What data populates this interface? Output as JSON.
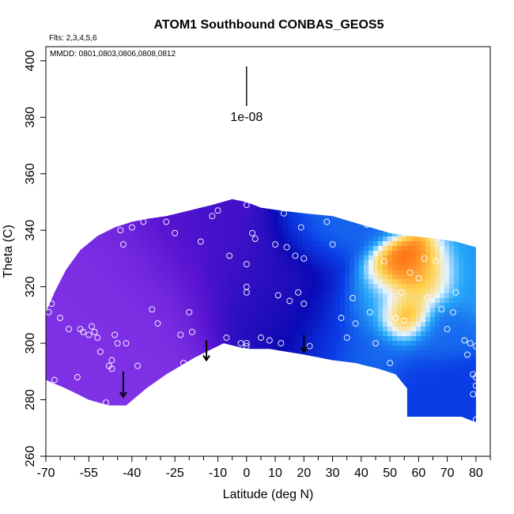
{
  "chart_data": {
    "type": "heatmap",
    "title": "ATOM1 Southbound CONBAS_GEOS5",
    "subtitle_left": "Flts: 2,3,4,5,6",
    "annotation_mmdd": "MMDD: 0801,0803,0806,0808,0812",
    "xlabel": "Latitude (deg N)",
    "ylabel": "Theta (C)",
    "xlim": [
      -70,
      85
    ],
    "ylim": [
      260,
      405
    ],
    "x_tick_labels": [
      "-70",
      "-55",
      "-40",
      "-25",
      "-10",
      "0",
      "10",
      "20",
      "30",
      "40",
      "50",
      "60",
      "70",
      "80"
    ],
    "x_tick_values": [
      -70,
      -55,
      -40,
      -25,
      -10,
      0,
      10,
      20,
      30,
      40,
      50,
      60,
      70,
      80
    ],
    "x_minor_ticks": [
      -65,
      -60,
      -50,
      -45,
      -35,
      -30,
      -20,
      -15,
      -5,
      5,
      15,
      25,
      35,
      45,
      55,
      65,
      75,
      85
    ],
    "y_tick_labels": [
      "260",
      "280",
      "300",
      "320",
      "340",
      "360",
      "380",
      "400"
    ],
    "y_tick_values": [
      260,
      280,
      300,
      320,
      340,
      360,
      380,
      400
    ],
    "scale_bar": {
      "label": "1e-08",
      "x": 0,
      "y_top": 398,
      "y_bottom": 384
    },
    "outline_upper": [
      [
        -70,
        311
      ],
      [
        -67,
        318
      ],
      [
        -63,
        326
      ],
      [
        -58,
        333
      ],
      [
        -52,
        338
      ],
      [
        -46,
        341
      ],
      [
        -40,
        343
      ],
      [
        -35,
        344
      ],
      [
        -28,
        345
      ],
      [
        -20,
        347
      ],
      [
        -12,
        349
      ],
      [
        -5,
        351
      ],
      [
        0,
        350
      ],
      [
        5,
        348
      ],
      [
        12,
        347
      ],
      [
        20,
        346
      ],
      [
        30,
        345
      ],
      [
        40,
        342
      ],
      [
        50,
        339
      ],
      [
        58,
        338
      ],
      [
        66,
        337
      ],
      [
        73,
        336
      ],
      [
        80,
        334
      ],
      [
        80,
        272
      ]
    ],
    "outline_lower": [
      [
        -70,
        287
      ],
      [
        -63,
        284
      ],
      [
        -55,
        280
      ],
      [
        -48,
        278
      ],
      [
        -42,
        278
      ],
      [
        -35,
        284
      ],
      [
        -28,
        289
      ],
      [
        -18,
        295
      ],
      [
        -8,
        300
      ],
      [
        0,
        298
      ],
      [
        8,
        298
      ],
      [
        20,
        296
      ],
      [
        30,
        294
      ],
      [
        38,
        293
      ],
      [
        46,
        291
      ],
      [
        52,
        289
      ],
      [
        56,
        284
      ],
      [
        56,
        274
      ],
      [
        66,
        274
      ],
      [
        75,
        274
      ],
      [
        80,
        272
      ]
    ],
    "field_blobs": [
      {
        "x": -55,
        "y": 305,
        "value": 0.05,
        "spread": 18
      },
      {
        "x": -40,
        "y": 320,
        "value": 0.08,
        "spread": 16
      },
      {
        "x": -15,
        "y": 335,
        "value": 0.25,
        "spread": 14
      },
      {
        "x": 5,
        "y": 320,
        "value": 0.3,
        "spread": 14
      },
      {
        "x": 15,
        "y": 310,
        "value": 0.35,
        "spread": 12
      },
      {
        "x": 28,
        "y": 340,
        "value": 0.55,
        "spread": 10
      },
      {
        "x": 35,
        "y": 305,
        "value": 0.55,
        "spread": 12
      },
      {
        "x": 46,
        "y": 315,
        "value": 0.65,
        "spread": 8
      },
      {
        "x": 53,
        "y": 325,
        "value": 0.95,
        "spread": 6
      },
      {
        "x": 55,
        "y": 310,
        "value": 1.0,
        "spread": 5
      },
      {
        "x": 62,
        "y": 322,
        "value": 0.85,
        "spread": 6
      },
      {
        "x": 68,
        "y": 305,
        "value": 0.55,
        "spread": 7
      },
      {
        "x": 70,
        "y": 280,
        "value": 0.5,
        "spread": 10
      },
      {
        "x": 78,
        "y": 320,
        "value": 0.6,
        "spread": 8
      }
    ],
    "arrows": [
      {
        "x": -43,
        "y_top": 290,
        "y_bottom": 281
      },
      {
        "x": -14,
        "y_top": 301,
        "y_bottom": 294
      },
      {
        "x": 20,
        "y_top": 303,
        "y_bottom": 297
      }
    ],
    "sample_points": [
      [
        -69,
        311
      ],
      [
        -68,
        314
      ],
      [
        -67,
        287
      ],
      [
        -65,
        309
      ],
      [
        -62,
        305
      ],
      [
        -59,
        288
      ],
      [
        -58,
        305
      ],
      [
        -57,
        304
      ],
      [
        -55,
        303
      ],
      [
        -54,
        306
      ],
      [
        -53,
        304
      ],
      [
        -52,
        302
      ],
      [
        -51,
        297
      ],
      [
        -49,
        279
      ],
      [
        -48,
        292
      ],
      [
        -47,
        294
      ],
      [
        -47,
        291
      ],
      [
        -46,
        303
      ],
      [
        -45,
        300
      ],
      [
        -44,
        340
      ],
      [
        -43,
        335
      ],
      [
        -42,
        300
      ],
      [
        -41,
        345
      ],
      [
        -40,
        341
      ],
      [
        -38,
        292
      ],
      [
        -36,
        343
      ],
      [
        -35,
        347
      ],
      [
        -33,
        312
      ],
      [
        -31,
        307
      ],
      [
        -28,
        343
      ],
      [
        -25,
        339
      ],
      [
        -23,
        303
      ],
      [
        -22,
        293
      ],
      [
        -20,
        311
      ],
      [
        -19,
        304
      ],
      [
        -16,
        336
      ],
      [
        -12,
        345
      ],
      [
        -10,
        347
      ],
      [
        -7,
        302
      ],
      [
        -6,
        331
      ],
      [
        -2,
        300
      ],
      [
        0,
        328
      ],
      [
        0,
        320
      ],
      [
        0,
        318
      ],
      [
        0,
        300
      ],
      [
        0,
        299
      ],
      [
        0,
        349
      ],
      [
        2,
        339
      ],
      [
        3,
        337
      ],
      [
        5,
        302
      ],
      [
        8,
        301
      ],
      [
        10,
        335
      ],
      [
        11,
        317
      ],
      [
        12,
        300
      ],
      [
        13,
        346
      ],
      [
        14,
        334
      ],
      [
        15,
        315
      ],
      [
        17,
        331
      ],
      [
        18,
        318
      ],
      [
        19,
        341
      ],
      [
        20,
        330
      ],
      [
        20,
        314
      ],
      [
        22,
        299
      ],
      [
        25,
        291
      ],
      [
        28,
        343
      ],
      [
        30,
        335
      ],
      [
        33,
        309
      ],
      [
        35,
        302
      ],
      [
        37,
        316
      ],
      [
        38,
        307
      ],
      [
        40,
        291
      ],
      [
        42,
        342
      ],
      [
        43,
        311
      ],
      [
        45,
        300
      ],
      [
        48,
        329
      ],
      [
        50,
        293
      ],
      [
        52,
        309
      ],
      [
        54,
        318
      ],
      [
        55,
        308
      ],
      [
        57,
        325
      ],
      [
        60,
        323
      ],
      [
        62,
        330
      ],
      [
        63,
        316
      ],
      [
        66,
        329
      ],
      [
        68,
        312
      ],
      [
        70,
        305
      ],
      [
        72,
        311
      ],
      [
        73,
        318
      ],
      [
        76,
        301
      ],
      [
        77,
        296
      ],
      [
        78,
        337
      ],
      [
        78,
        300
      ],
      [
        79,
        289
      ],
      [
        79,
        282
      ],
      [
        80,
        273
      ],
      [
        80,
        288
      ],
      [
        80,
        285
      ],
      [
        80,
        299
      ]
    ]
  }
}
